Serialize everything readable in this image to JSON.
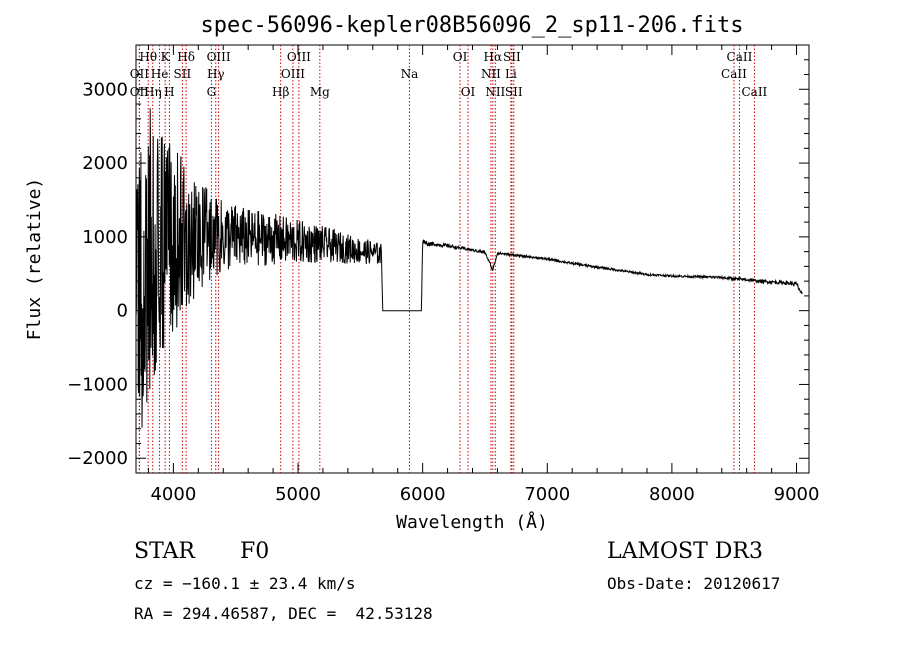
{
  "chart_data": {
    "type": "line",
    "title": "spec-56096-kepler08B56096_2_sp11-206.fits",
    "xlabel": "Wavelength (Å)",
    "ylabel": "Flux (relative)",
    "xlim": [
      3700,
      9100
    ],
    "ylim": [
      -2200,
      3600
    ],
    "xticks": [
      "4000",
      "5000",
      "6000",
      "7000",
      "8000",
      "9000"
    ],
    "xtick_values": [
      4000,
      5000,
      6000,
      7000,
      8000,
      9000
    ],
    "yticks": [
      "3000",
      "2000",
      "1000",
      "0",
      "−1000",
      "−2000"
    ],
    "ytick_values": [
      3000,
      2000,
      1000,
      0,
      -1000,
      -2000
    ],
    "series": [
      {
        "name": "spectrum",
        "x": [
          3700,
          3750,
          3800,
          3850,
          3900,
          3950,
          4000,
          4100,
          4200,
          4300,
          4400,
          4500,
          4600,
          4700,
          4800,
          4900,
          5000,
          5100,
          5200,
          5300,
          5400,
          5500,
          5600,
          5670,
          5680,
          5900,
          5990,
          6000,
          6050,
          6100,
          6200,
          6300,
          6400,
          6500,
          6563,
          6600,
          6700,
          6800,
          7000,
          7200,
          7400,
          7600,
          7800,
          8000,
          8200,
          8400,
          8500,
          8600,
          8700,
          8800,
          8900,
          9000,
          9050
        ],
        "y": [
          400,
          600,
          800,
          900,
          900,
          950,
          950,
          1000,
          1000,
          1000,
          1000,
          1000,
          980,
          980,
          970,
          950,
          930,
          920,
          900,
          870,
          840,
          810,
          790,
          760,
          0,
          0,
          0,
          950,
          900,
          900,
          880,
          850,
          820,
          790,
          550,
          780,
          760,
          740,
          700,
          640,
          590,
          540,
          490,
          470,
          460,
          450,
          430,
          420,
          400,
          390,
          380,
          360,
          200
        ],
        "noise_amp": [
          1800,
          2200,
          2000,
          1800,
          1600,
          1400,
          1300,
          1000,
          800,
          600,
          500,
          450,
          400,
          380,
          350,
          330,
          300,
          280,
          250,
          220,
          200,
          180,
          160,
          150,
          0,
          0,
          0,
          30,
          30,
          25,
          25,
          20,
          20,
          20,
          20,
          15,
          15,
          15,
          15,
          15,
          15,
          15,
          15,
          15,
          15,
          20,
          20,
          20,
          20,
          25,
          25,
          30,
          30
        ]
      }
    ],
    "lines": [
      {
        "name": "Hθ",
        "x": 3798,
        "row": 1
      },
      {
        "name": "OII",
        "x": 3727,
        "row": 2
      },
      {
        "name": "OII",
        "x": 3727,
        "row": 3
      },
      {
        "name": "Hη",
        "x": 3835,
        "row": 3
      },
      {
        "name": "K",
        "x": 3934,
        "row": 1
      },
      {
        "name": "He",
        "x": 3889,
        "row": 2
      },
      {
        "name": "H",
        "x": 3968,
        "row": 3
      },
      {
        "name": "Hδ",
        "x": 4102,
        "row": 1
      },
      {
        "name": "SII",
        "x": 4072,
        "row": 2
      },
      {
        "name": "OIII",
        "x": 4363,
        "row": 1
      },
      {
        "name": "Hγ",
        "x": 4340,
        "row": 2
      },
      {
        "name": "G",
        "x": 4305,
        "row": 3
      },
      {
        "name": "OIII",
        "x": 5007,
        "row": 1
      },
      {
        "name": "OIII",
        "x": 4959,
        "row": 2
      },
      {
        "name": "Hβ",
        "x": 4861,
        "row": 3
      },
      {
        "name": "Mg",
        "x": 5175,
        "row": 3
      },
      {
        "name": "Na",
        "x": 5894,
        "row": 2
      },
      {
        "name": "OI",
        "x": 6300,
        "row": 1
      },
      {
        "name": "OI",
        "x": 6364,
        "row": 3
      },
      {
        "name": "Hα",
        "x": 6563,
        "row": 1
      },
      {
        "name": "NII",
        "x": 6548,
        "row": 2
      },
      {
        "name": "NII",
        "x": 6583,
        "row": 3
      },
      {
        "name": "SII",
        "x": 6716,
        "row": 1
      },
      {
        "name": "Li",
        "x": 6708,
        "row": 2
      },
      {
        "name": "SII",
        "x": 6731,
        "row": 3
      },
      {
        "name": "CaII",
        "x": 8542,
        "row": 1
      },
      {
        "name": "CaII",
        "x": 8498,
        "row": 2
      },
      {
        "name": "CaII",
        "x": 8662,
        "row": 3
      }
    ],
    "line_color": "#cc0000",
    "spectrum_color": "#000000"
  },
  "info": {
    "object_type": "STAR",
    "subclass": "F0",
    "survey": "LAMOST DR3",
    "cz": "cz = −160.1 ± 23.4 km/s",
    "obs_date": "Obs-Date: 20120617",
    "coords": "RA = 294.46587, DEC =  42.53128"
  }
}
